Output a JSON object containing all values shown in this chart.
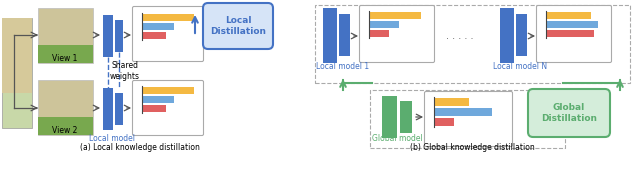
{
  "fig_width": 6.4,
  "fig_height": 1.9,
  "dpi": 100,
  "bg_color": "#ffffff",
  "blue_color": "#4472C4",
  "blue_light": "#6FA8DC",
  "orange_color": "#F4B942",
  "red_color": "#E06060",
  "green_color": "#5BAD6F",
  "arrow_color": "#555555",
  "caption_left": "(a) Local knowledge distillation",
  "caption_right": "(b) Global knowledge distillation",
  "label_view1": "View 1",
  "label_view2": "View 2",
  "label_local_model": "Local model",
  "label_local_model_1": "Local model 1",
  "label_local_model_N": "Local model N",
  "label_global_model": "Global model",
  "label_shared_weights": "Shared\nweights",
  "label_local_distillation": "Local\nDistillation",
  "label_global_distillation": "Global\nDistillation"
}
